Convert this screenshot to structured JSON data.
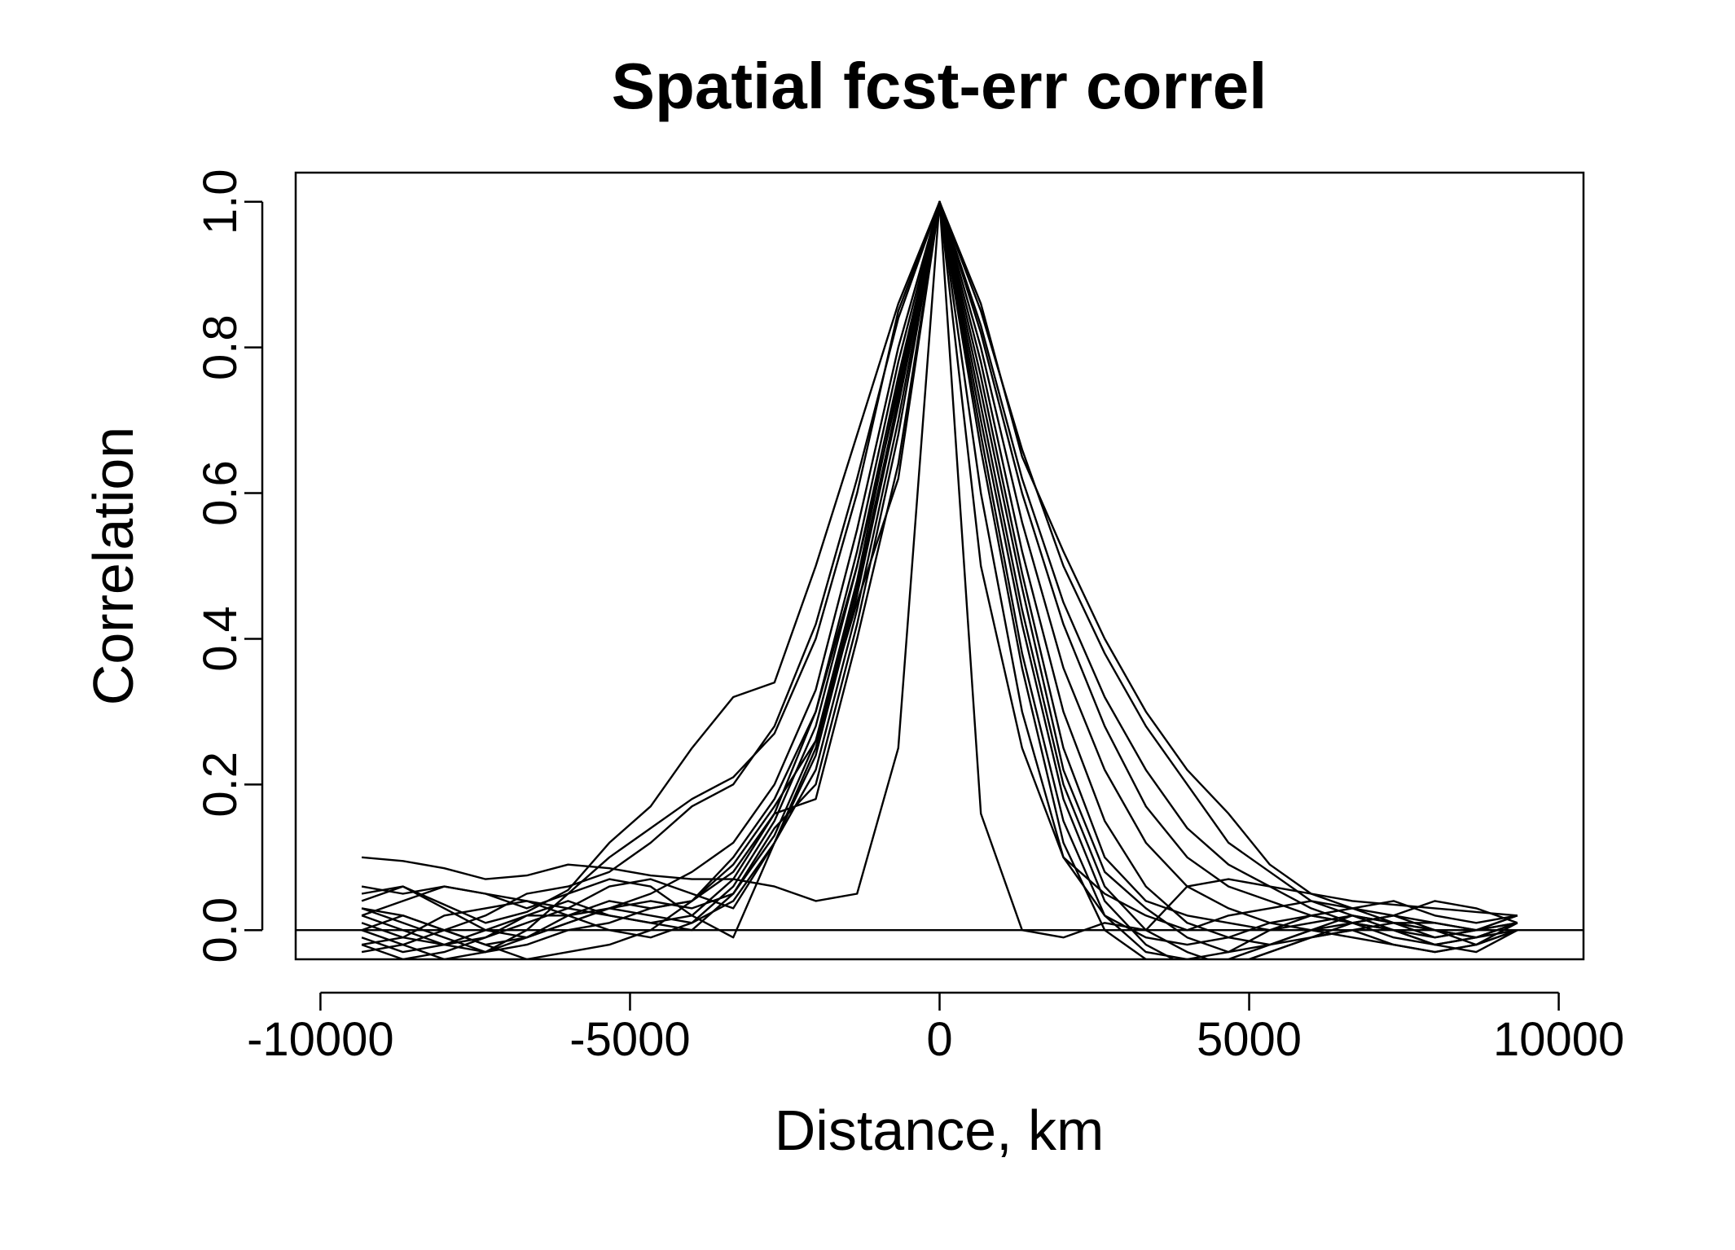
{
  "chart_data": {
    "type": "line",
    "title": "Spatial fcst-err correl",
    "xlabel": "Distance, km",
    "ylabel": "Correlation",
    "xlim": [
      -10400,
      10400
    ],
    "ylim": [
      -0.04,
      1.04
    ],
    "x_ticks": [
      -10000,
      -5000,
      0,
      5000,
      10000
    ],
    "x_tick_labels": [
      "-10000",
      "-5000",
      "0",
      "5000",
      "10000"
    ],
    "y_ticks": [
      0.0,
      0.2,
      0.4,
      0.6,
      0.8,
      1.0
    ],
    "y_tick_labels": [
      "0.0",
      "0.2",
      "0.4",
      "0.6",
      "0.8",
      "1.0"
    ],
    "reference_line_y": 0,
    "grid": false,
    "legend": "none",
    "line_color": "#000000",
    "x": [
      -9333,
      -8667,
      -8000,
      -7333,
      -6667,
      -6000,
      -5333,
      -4667,
      -4000,
      -3333,
      -2667,
      -2000,
      -1333,
      -667,
      0,
      667,
      1333,
      2000,
      2667,
      3333,
      4000,
      4667,
      5333,
      6000,
      6667,
      7333,
      8000,
      8667,
      9333
    ],
    "series": [
      {
        "values": [
          0.1,
          0.095,
          0.085,
          0.07,
          0.075,
          0.09,
          0.085,
          0.075,
          0.07,
          0.07,
          0.06,
          0.04,
          0.05,
          0.25,
          1.0,
          0.16,
          0.0,
          -0.01,
          0.01,
          0.0,
          0.06,
          0.07,
          0.06,
          0.05,
          0.04,
          0.035,
          0.03,
          0.025,
          0.02
        ]
      },
      {
        "values": [
          0.04,
          0.06,
          0.035,
          0.01,
          0.025,
          0.055,
          0.12,
          0.17,
          0.25,
          0.32,
          0.34,
          0.5,
          0.68,
          0.86,
          1.0,
          0.86,
          0.65,
          0.52,
          0.4,
          0.3,
          0.22,
          0.16,
          0.09,
          0.05,
          0.03,
          0.01,
          -0.01,
          0.0,
          0.01
        ]
      },
      {
        "values": [
          0.02,
          0.0,
          -0.02,
          -0.03,
          0.0,
          0.05,
          0.1,
          0.14,
          0.18,
          0.21,
          0.27,
          0.4,
          0.6,
          0.85,
          1.0,
          0.85,
          0.66,
          0.5,
          0.38,
          0.28,
          0.2,
          0.12,
          0.08,
          0.04,
          0.02,
          0.0,
          -0.02,
          -0.01,
          0.0
        ]
      },
      {
        "values": [
          0.0,
          -0.02,
          0.0,
          0.02,
          0.05,
          0.06,
          0.08,
          0.12,
          0.17,
          0.2,
          0.28,
          0.42,
          0.62,
          0.84,
          1.0,
          0.83,
          0.62,
          0.45,
          0.32,
          0.22,
          0.14,
          0.09,
          0.06,
          0.03,
          0.01,
          -0.01,
          -0.02,
          -0.01,
          0.01
        ]
      },
      {
        "values": [
          -0.02,
          -0.01,
          0.02,
          0.03,
          0.04,
          0.02,
          0.03,
          0.05,
          0.08,
          0.12,
          0.2,
          0.33,
          0.55,
          0.8,
          1.0,
          0.82,
          0.6,
          0.42,
          0.28,
          0.17,
          0.1,
          0.06,
          0.04,
          0.02,
          0.01,
          0.0,
          -0.01,
          0.0,
          0.02
        ]
      },
      {
        "values": [
          0.05,
          0.06,
          0.03,
          0.0,
          -0.01,
          0.02,
          0.04,
          0.03,
          0.04,
          0.08,
          0.16,
          0.3,
          0.52,
          0.78,
          1.0,
          0.8,
          0.56,
          0.36,
          0.22,
          0.12,
          0.06,
          0.03,
          0.01,
          0.0,
          -0.01,
          -0.02,
          -0.03,
          -0.02,
          0.0
        ]
      },
      {
        "values": [
          -0.03,
          -0.02,
          -0.04,
          -0.03,
          -0.01,
          0.01,
          0.03,
          0.02,
          0.01,
          0.06,
          0.15,
          0.28,
          0.5,
          0.76,
          1.0,
          0.78,
          0.52,
          0.3,
          0.15,
          0.06,
          0.01,
          -0.01,
          -0.02,
          -0.01,
          0.0,
          -0.02,
          -0.03,
          -0.02,
          0.01
        ]
      },
      {
        "values": [
          0.01,
          -0.01,
          -0.02,
          -0.01,
          0.01,
          0.03,
          0.02,
          0.01,
          0.0,
          0.05,
          0.13,
          0.26,
          0.48,
          0.75,
          1.0,
          0.76,
          0.49,
          0.25,
          0.1,
          0.04,
          0.02,
          0.01,
          0.0,
          0.01,
          0.02,
          0.01,
          0.0,
          -0.01,
          0.01
        ]
      },
      {
        "values": [
          0.03,
          0.02,
          0.0,
          -0.02,
          -0.04,
          -0.03,
          -0.02,
          0.0,
          0.04,
          0.1,
          0.18,
          0.3,
          0.5,
          0.74,
          1.0,
          0.74,
          0.47,
          0.22,
          0.08,
          0.03,
          -0.01,
          -0.03,
          -0.02,
          0.0,
          0.01,
          0.02,
          0.0,
          -0.02,
          0.0
        ]
      },
      {
        "values": [
          0.06,
          0.05,
          0.06,
          0.05,
          0.04,
          0.03,
          0.06,
          0.07,
          0.05,
          0.03,
          0.12,
          0.25,
          0.47,
          0.73,
          1.0,
          0.72,
          0.44,
          0.2,
          0.06,
          0.0,
          -0.03,
          -0.05,
          -0.03,
          -0.01,
          0.01,
          0.02,
          0.04,
          0.03,
          0.01
        ]
      },
      {
        "values": [
          -0.01,
          -0.03,
          -0.02,
          0.0,
          0.02,
          0.02,
          0.0,
          -0.01,
          0.01,
          0.04,
          0.12,
          0.24,
          0.46,
          0.72,
          1.0,
          0.7,
          0.42,
          0.18,
          0.04,
          -0.02,
          -0.05,
          -0.04,
          -0.02,
          0.0,
          0.02,
          0.01,
          0.01,
          0.0,
          0.02
        ]
      },
      {
        "values": [
          0.02,
          0.04,
          0.06,
          0.05,
          0.03,
          0.05,
          0.07,
          0.06,
          0.02,
          -0.01,
          0.12,
          0.22,
          0.44,
          0.7,
          1.0,
          0.68,
          0.38,
          0.15,
          0.02,
          -0.03,
          -0.04,
          -0.03,
          0.0,
          0.02,
          0.03,
          0.04,
          0.02,
          0.01,
          0.02
        ]
      },
      {
        "values": [
          0.0,
          0.02,
          0.0,
          -0.02,
          -0.01,
          0.01,
          0.03,
          0.04,
          0.03,
          0.05,
          0.14,
          0.2,
          0.42,
          0.68,
          1.0,
          0.66,
          0.36,
          0.12,
          0.0,
          -0.04,
          -0.06,
          -0.05,
          -0.03,
          -0.01,
          0.0,
          0.01,
          0.0,
          -0.01,
          0.01
        ]
      },
      {
        "values": [
          -0.02,
          -0.04,
          -0.03,
          -0.01,
          0.02,
          0.04,
          0.02,
          0.01,
          0.02,
          0.07,
          0.16,
          0.18,
          0.4,
          0.64,
          1.0,
          0.6,
          0.3,
          0.1,
          0.02,
          -0.01,
          -0.02,
          -0.01,
          0.01,
          0.02,
          0.01,
          0.0,
          -0.02,
          -0.03,
          0.0
        ]
      },
      {
        "values": [
          0.03,
          0.01,
          -0.01,
          -0.03,
          -0.02,
          0.0,
          0.01,
          0.03,
          0.04,
          0.09,
          0.17,
          0.26,
          0.45,
          0.62,
          1.0,
          0.5,
          0.25,
          0.1,
          0.05,
          0.02,
          0.0,
          0.02,
          0.03,
          0.04,
          0.03,
          0.02,
          0.01,
          0.0,
          0.01
        ]
      }
    ]
  }
}
